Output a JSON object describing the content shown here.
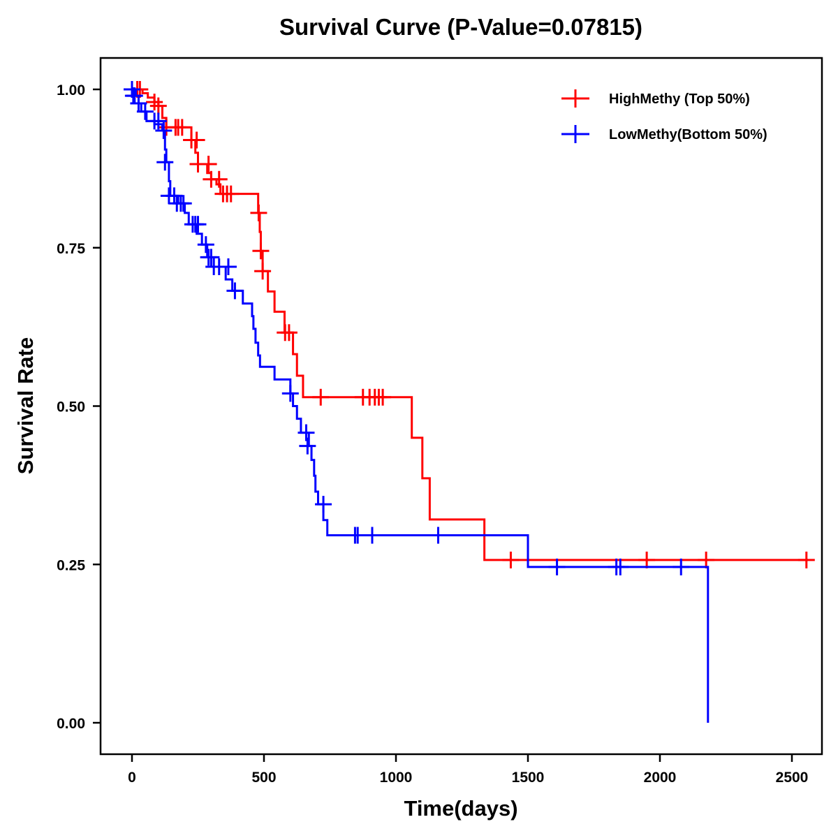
{
  "chart_data": {
    "type": "line",
    "subtype": "kaplan-meier step",
    "title": "Survival Curve (P-Value=0.07815)",
    "xlabel": "Time(days)",
    "ylabel": "Survival Rate",
    "xlim": [
      -115,
      2600
    ],
    "ylim": [
      -0.05,
      1.05
    ],
    "xticks": [
      0,
      500,
      1000,
      1500,
      2000,
      2500
    ],
    "xtick_labels": [
      "0",
      "500",
      "1000",
      "1500",
      "2000",
      "2500"
    ],
    "yticks": [
      0,
      0.25,
      0.5,
      0.75,
      1.0
    ],
    "ytick_labels": [
      "0.00",
      "0.25",
      "0.50",
      "0.75",
      "1.00"
    ],
    "grid": false,
    "legend_position": "top-right",
    "series": [
      {
        "name": "HighMethy (Top 50%)",
        "color": "#ff0000",
        "steps": [
          [
            0,
            1.0
          ],
          [
            40,
            0.994
          ],
          [
            60,
            0.987
          ],
          [
            85,
            0.98
          ],
          [
            100,
            0.974
          ],
          [
            115,
            0.955
          ],
          [
            130,
            0.94
          ],
          [
            225,
            0.92
          ],
          [
            240,
            0.9
          ],
          [
            250,
            0.882
          ],
          [
            285,
            0.868
          ],
          [
            300,
            0.858
          ],
          [
            320,
            0.85
          ],
          [
            335,
            0.835
          ],
          [
            478,
            0.805
          ],
          [
            484,
            0.775
          ],
          [
            488,
            0.745
          ],
          [
            495,
            0.713
          ],
          [
            515,
            0.681
          ],
          [
            540,
            0.649
          ],
          [
            578,
            0.616
          ],
          [
            610,
            0.582
          ],
          [
            625,
            0.548
          ],
          [
            648,
            0.514
          ],
          [
            1060,
            0.45
          ],
          [
            1100,
            0.386
          ],
          [
            1128,
            0.321
          ],
          [
            1335,
            0.257
          ],
          [
            2560,
            0.257
          ]
        ],
        "censored": [
          [
            20,
            1.0
          ],
          [
            30,
            1.0
          ],
          [
            85,
            0.98
          ],
          [
            100,
            0.974
          ],
          [
            130,
            0.94
          ],
          [
            165,
            0.94
          ],
          [
            175,
            0.94
          ],
          [
            190,
            0.94
          ],
          [
            225,
            0.92
          ],
          [
            245,
            0.92
          ],
          [
            250,
            0.882
          ],
          [
            290,
            0.882
          ],
          [
            300,
            0.858
          ],
          [
            330,
            0.858
          ],
          [
            345,
            0.835
          ],
          [
            360,
            0.835
          ],
          [
            375,
            0.835
          ],
          [
            480,
            0.805
          ],
          [
            488,
            0.745
          ],
          [
            495,
            0.713
          ],
          [
            580,
            0.616
          ],
          [
            595,
            0.616
          ],
          [
            715,
            0.514
          ],
          [
            875,
            0.514
          ],
          [
            900,
            0.514
          ],
          [
            920,
            0.514
          ],
          [
            935,
            0.514
          ],
          [
            950,
            0.514
          ],
          [
            1435,
            0.257
          ],
          [
            1950,
            0.257
          ],
          [
            2175,
            0.257
          ],
          [
            2555,
            0.257
          ]
        ]
      },
      {
        "name": "LowMethy(Bottom 50%)",
        "color": "#0000ff",
        "steps": [
          [
            0,
            1.0
          ],
          [
            15,
            0.99
          ],
          [
            25,
            0.978
          ],
          [
            35,
            0.965
          ],
          [
            55,
            0.95
          ],
          [
            85,
            0.945
          ],
          [
            115,
            0.935
          ],
          [
            125,
            0.905
          ],
          [
            130,
            0.885
          ],
          [
            140,
            0.855
          ],
          [
            145,
            0.832
          ],
          [
            175,
            0.82
          ],
          [
            200,
            0.805
          ],
          [
            215,
            0.787
          ],
          [
            245,
            0.772
          ],
          [
            265,
            0.755
          ],
          [
            285,
            0.735
          ],
          [
            300,
            0.72
          ],
          [
            355,
            0.7
          ],
          [
            380,
            0.682
          ],
          [
            420,
            0.662
          ],
          [
            455,
            0.642
          ],
          [
            460,
            0.622
          ],
          [
            468,
            0.6
          ],
          [
            478,
            0.58
          ],
          [
            485,
            0.562
          ],
          [
            540,
            0.542
          ],
          [
            600,
            0.52
          ],
          [
            610,
            0.5
          ],
          [
            625,
            0.48
          ],
          [
            640,
            0.458
          ],
          [
            670,
            0.437
          ],
          [
            680,
            0.415
          ],
          [
            690,
            0.39
          ],
          [
            695,
            0.365
          ],
          [
            705,
            0.345
          ],
          [
            725,
            0.32
          ],
          [
            740,
            0.296
          ],
          [
            1500,
            0.246
          ],
          [
            2180,
            0.246
          ],
          [
            2182,
            0.0
          ]
        ],
        "censored": [
          [
            0,
            1.0
          ],
          [
            5,
            0.99
          ],
          [
            10,
            0.99
          ],
          [
            25,
            0.978
          ],
          [
            50,
            0.965
          ],
          [
            85,
            0.95
          ],
          [
            100,
            0.95
          ],
          [
            120,
            0.935
          ],
          [
            125,
            0.885
          ],
          [
            140,
            0.832
          ],
          [
            160,
            0.832
          ],
          [
            170,
            0.82
          ],
          [
            185,
            0.82
          ],
          [
            195,
            0.82
          ],
          [
            230,
            0.787
          ],
          [
            240,
            0.787
          ],
          [
            250,
            0.787
          ],
          [
            280,
            0.755
          ],
          [
            290,
            0.735
          ],
          [
            300,
            0.735
          ],
          [
            310,
            0.72
          ],
          [
            330,
            0.72
          ],
          [
            365,
            0.72
          ],
          [
            390,
            0.682
          ],
          [
            600,
            0.52
          ],
          [
            660,
            0.458
          ],
          [
            665,
            0.437
          ],
          [
            725,
            0.345
          ],
          [
            845,
            0.296
          ],
          [
            855,
            0.296
          ],
          [
            910,
            0.296
          ],
          [
            1160,
            0.296
          ],
          [
            1610,
            0.246
          ],
          [
            1835,
            0.246
          ],
          [
            1850,
            0.246
          ],
          [
            2080,
            0.246
          ]
        ]
      }
    ]
  }
}
